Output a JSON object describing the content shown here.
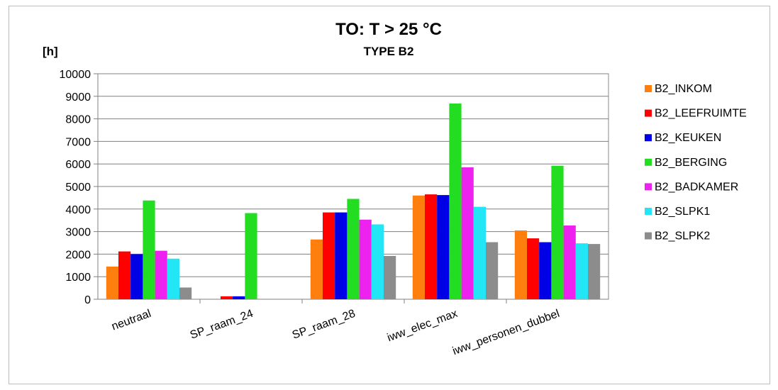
{
  "chart_data": {
    "type": "bar",
    "title": "TO: T > 25 °C",
    "subtitle": "TYPE B2",
    "ylabel": "[h]",
    "xlabel": "",
    "ylim": [
      0,
      10000
    ],
    "yticks": [
      "0",
      "1000",
      "2000",
      "3000",
      "4000",
      "5000",
      "6000",
      "7000",
      "8000",
      "9000",
      "10000"
    ],
    "grid": true,
    "legend_position": "right",
    "categories": [
      "neutraal",
      "SP_raam_24",
      "SP_raam_28",
      "iww_elec_max",
      "iww_personen_dubbel"
    ],
    "series": [
      {
        "name": "B2_INKOM",
        "color": "#FF7F0E",
        "values": [
          1450,
          0,
          2650,
          4600,
          3050
        ]
      },
      {
        "name": "B2_LEEFRUIMTE",
        "color": "#FF0000",
        "values": [
          2120,
          130,
          3850,
          4650,
          2700
        ]
      },
      {
        "name": "B2_KEUKEN",
        "color": "#0000E6",
        "values": [
          2000,
          130,
          3850,
          4620,
          2530
        ]
      },
      {
        "name": "B2_BERGING",
        "color": "#22DD22",
        "values": [
          4380,
          3820,
          4450,
          8680,
          5920
        ]
      },
      {
        "name": "B2_BADKAMER",
        "color": "#EE22EE",
        "values": [
          2150,
          0,
          3530,
          5850,
          3270
        ]
      },
      {
        "name": "B2_SLPK1",
        "color": "#22E6F5",
        "values": [
          1800,
          0,
          3320,
          4100,
          2480
        ]
      },
      {
        "name": "B2_SLPK2",
        "color": "#8C8C8C",
        "values": [
          520,
          0,
          1920,
          2530,
          2450
        ]
      }
    ]
  }
}
